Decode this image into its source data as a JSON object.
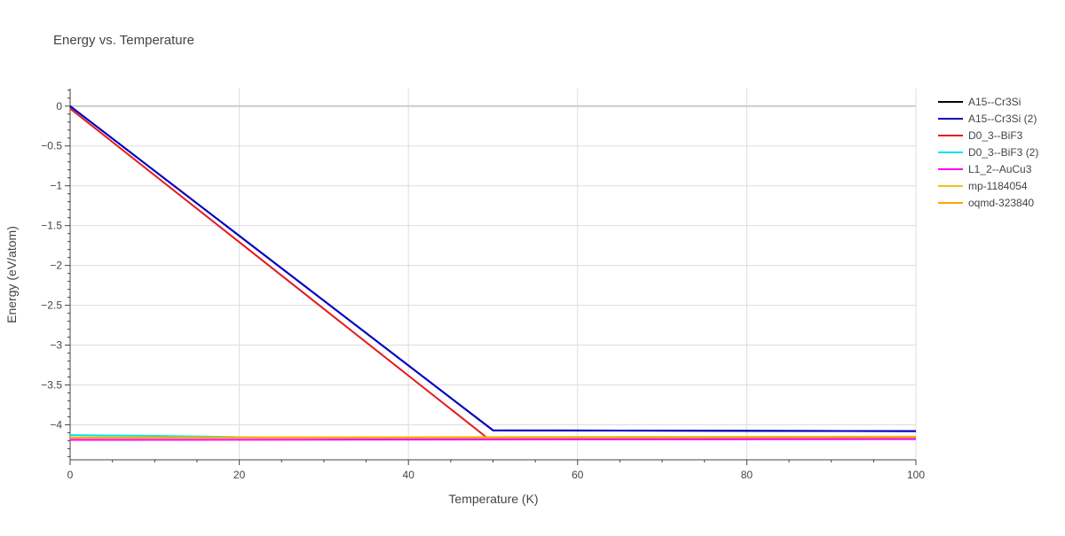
{
  "chart_data": {
    "type": "line",
    "title": "Energy vs. Temperature",
    "xlabel": "Temperature (K)",
    "ylabel": "Energy (eV/atom)",
    "xlim": [
      0,
      100
    ],
    "ylim": [
      -4.44,
      0.22
    ],
    "xticks": [
      0,
      20,
      40,
      60,
      80,
      100
    ],
    "xtick_labels": [
      "0",
      "20",
      "40",
      "60",
      "80",
      "100"
    ],
    "yticks": [
      0,
      -0.5,
      -1,
      -1.5,
      -2,
      -2.5,
      -3,
      -3.5,
      -4
    ],
    "ytick_labels": [
      "0",
      "−0.5",
      "−1",
      "−1.5",
      "−2",
      "−2.5",
      "−3",
      "−3.5",
      "−4"
    ],
    "grid": true,
    "legend_position": "right",
    "series": [
      {
        "name": "A15--Cr3Si",
        "color": "#000000",
        "x": [
          0,
          50,
          100
        ],
        "y": [
          0.0,
          -4.07,
          -4.08
        ]
      },
      {
        "name": "A15--Cr3Si (2)",
        "color": "#0000cc",
        "x": [
          0,
          50,
          100
        ],
        "y": [
          0.0,
          -4.07,
          -4.08
        ]
      },
      {
        "name": "D0_3--BiF3",
        "color": "#e41a1c",
        "x": [
          0,
          49.5,
          100
        ],
        "y": [
          -0.03,
          -4.18,
          -4.16
        ]
      },
      {
        "name": "D0_3--BiF3 (2)",
        "color": "#00e5ee",
        "x": [
          0,
          10,
          20,
          30,
          50,
          100
        ],
        "y": [
          -4.13,
          -4.14,
          -4.155,
          -4.165,
          -4.17,
          -4.17
        ]
      },
      {
        "name": "L1_2--AuCu3",
        "color": "#ff00ff",
        "x": [
          0,
          100
        ],
        "y": [
          -4.19,
          -4.18
        ]
      },
      {
        "name": "mp-1184054",
        "color": "#f0c020",
        "x": [
          0,
          100
        ],
        "y": [
          -4.16,
          -4.15
        ]
      },
      {
        "name": "oqmd-323840",
        "color": "#ffa500",
        "x": [
          0,
          100
        ],
        "y": [
          -4.165,
          -4.155
        ]
      }
    ]
  }
}
